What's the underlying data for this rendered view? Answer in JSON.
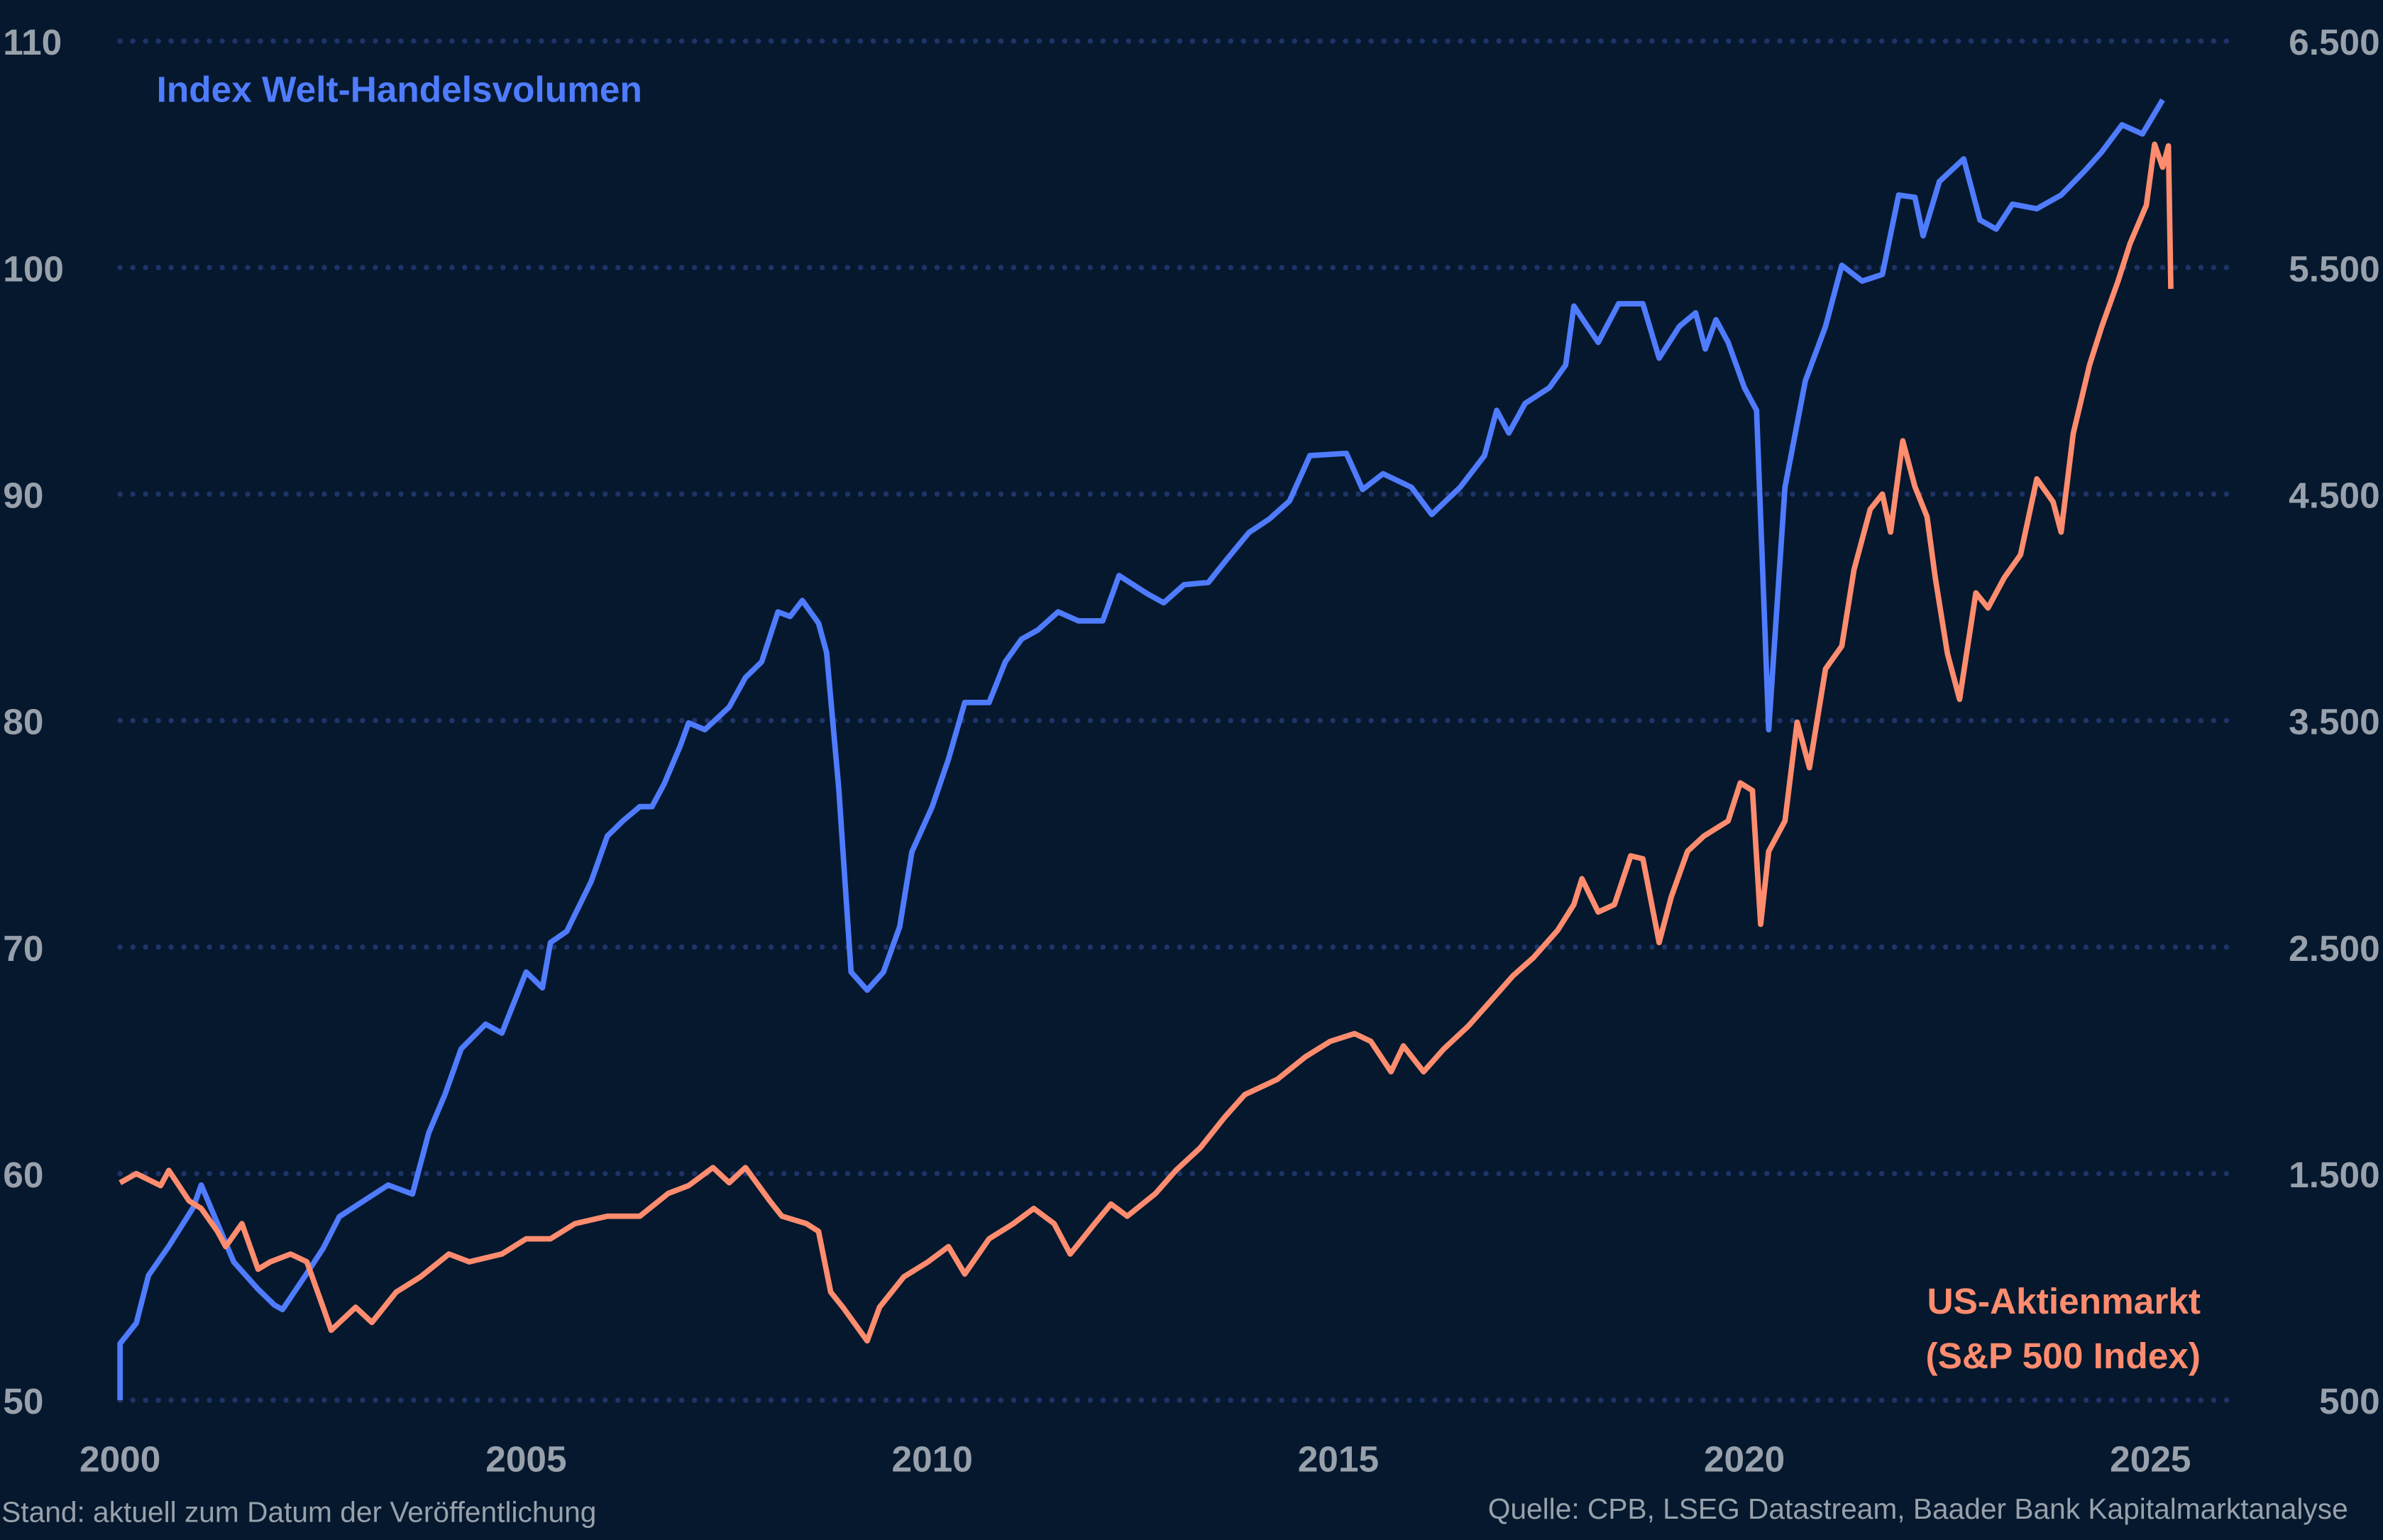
{
  "chart_data": {
    "type": "line",
    "title": "",
    "xlabel": "",
    "x_ticks": [
      "2000",
      "2005",
      "2010",
      "2015",
      "2020",
      "2025"
    ],
    "xlim": [
      2000,
      2025.6
    ],
    "y_left": {
      "lim": [
        50,
        110
      ],
      "ticks": [
        "50",
        "60",
        "70",
        "80",
        "90",
        "100",
        "110"
      ]
    },
    "y_right": {
      "lim": [
        500,
        6500
      ],
      "ticks": [
        "500",
        "1.500",
        "2.500",
        "3.500",
        "4.500",
        "5.500",
        "6.500"
      ]
    },
    "grid": true,
    "series": [
      {
        "name": "Index Welt-Handelsvolumen",
        "axis": "left",
        "color": "#4f7cff",
        "points": [
          [
            2000.0,
            52.5
          ],
          [
            2000.2,
            53.4
          ],
          [
            2000.35,
            55.5
          ],
          [
            2000.6,
            56.8
          ],
          [
            2000.9,
            58.5
          ],
          [
            2001.0,
            59.5
          ],
          [
            2001.2,
            57.8
          ],
          [
            2001.4,
            56.1
          ],
          [
            2001.7,
            54.9
          ],
          [
            2001.9,
            54.2
          ],
          [
            2002.0,
            54
          ],
          [
            2002.3,
            55.6
          ],
          [
            2002.5,
            56.7
          ],
          [
            2002.7,
            58.1
          ],
          [
            2003.0,
            58.8
          ],
          [
            2003.3,
            59.5
          ],
          [
            2003.6,
            59.1
          ],
          [
            2003.8,
            61.8
          ],
          [
            2004.0,
            63.5
          ],
          [
            2004.2,
            65.5
          ],
          [
            2004.5,
            66.6
          ],
          [
            2004.7,
            66.2
          ],
          [
            2005.0,
            68.9
          ],
          [
            2005.2,
            68.2
          ],
          [
            2005.3,
            70.2
          ],
          [
            2005.5,
            70.7
          ],
          [
            2005.8,
            72.9
          ],
          [
            2006.0,
            74.9
          ],
          [
            2006.2,
            75.6
          ],
          [
            2006.4,
            76.2
          ],
          [
            2006.55,
            76.2
          ],
          [
            2006.7,
            77.2
          ],
          [
            2006.9,
            78.9
          ],
          [
            2007.0,
            79.9
          ],
          [
            2007.2,
            79.6
          ],
          [
            2007.5,
            80.6
          ],
          [
            2007.7,
            81.9
          ],
          [
            2007.9,
            82.6
          ],
          [
            2008.1,
            84.8
          ],
          [
            2008.25,
            84.6
          ],
          [
            2008.4,
            85.3
          ],
          [
            2008.6,
            84.3
          ],
          [
            2008.7,
            83
          ],
          [
            2008.85,
            77
          ],
          [
            2009.0,
            68.9
          ],
          [
            2009.2,
            68.1
          ],
          [
            2009.4,
            68.9
          ],
          [
            2009.6,
            70.9
          ],
          [
            2009.75,
            74.2
          ],
          [
            2010.0,
            76.2
          ],
          [
            2010.2,
            78.3
          ],
          [
            2010.4,
            80.8
          ],
          [
            2010.7,
            80.8
          ],
          [
            2010.9,
            82.6
          ],
          [
            2011.1,
            83.6
          ],
          [
            2011.3,
            84
          ],
          [
            2011.55,
            84.8
          ],
          [
            2011.8,
            84.4
          ],
          [
            2012.1,
            84.4
          ],
          [
            2012.3,
            86.4
          ],
          [
            2012.65,
            85.6
          ],
          [
            2012.85,
            85.2
          ],
          [
            2013.1,
            86
          ],
          [
            2013.4,
            86.1
          ],
          [
            2013.6,
            87
          ],
          [
            2013.9,
            88.3
          ],
          [
            2014.15,
            88.9
          ],
          [
            2014.4,
            89.7
          ],
          [
            2014.65,
            91.7
          ],
          [
            2015.1,
            91.8
          ],
          [
            2015.3,
            90.2
          ],
          [
            2015.55,
            90.9
          ],
          [
            2015.9,
            90.3
          ],
          [
            2016.15,
            89.1
          ],
          [
            2016.5,
            90.3
          ],
          [
            2016.8,
            91.7
          ],
          [
            2016.95,
            93.7
          ],
          [
            2017.1,
            92.7
          ],
          [
            2017.3,
            94
          ],
          [
            2017.6,
            94.7
          ],
          [
            2017.8,
            95.7
          ],
          [
            2017.9,
            98.3
          ],
          [
            2018.2,
            96.7
          ],
          [
            2018.45,
            98.4
          ],
          [
            2018.75,
            98.4
          ],
          [
            2018.95,
            96
          ],
          [
            2019.2,
            97.4
          ],
          [
            2019.4,
            98
          ],
          [
            2019.52,
            96.4
          ],
          [
            2019.65,
            97.7
          ],
          [
            2019.8,
            96.7
          ],
          [
            2020.0,
            94.7
          ],
          [
            2020.15,
            93.7
          ],
          [
            2020.3,
            79.6
          ],
          [
            2020.5,
            90.3
          ],
          [
            2020.75,
            95
          ],
          [
            2021.0,
            97.4
          ],
          [
            2021.2,
            100.1
          ],
          [
            2021.45,
            99.4
          ],
          [
            2021.7,
            99.7
          ],
          [
            2021.9,
            103.2
          ],
          [
            2022.1,
            103.1
          ],
          [
            2022.2,
            101.4
          ],
          [
            2022.4,
            103.8
          ],
          [
            2022.7,
            104.8
          ],
          [
            2022.9,
            102.1
          ],
          [
            2023.1,
            101.7
          ],
          [
            2023.3,
            102.8
          ],
          [
            2023.6,
            102.6
          ],
          [
            2023.9,
            103.2
          ],
          [
            2024.2,
            104.3
          ],
          [
            2024.4,
            105.1
          ],
          [
            2024.65,
            106.3
          ],
          [
            2024.9,
            105.9
          ],
          [
            2025.15,
            107.4
          ]
        ]
      },
      {
        "name": "US-Aktienmarkt (S&P 500 Index)",
        "axis": "right",
        "color": "#ff8c6e",
        "points": [
          [
            2000.0,
            1460
          ],
          [
            2000.2,
            1500
          ],
          [
            2000.5,
            1447
          ],
          [
            2000.6,
            1514
          ],
          [
            2000.85,
            1380
          ],
          [
            2001.0,
            1346
          ],
          [
            2001.2,
            1245
          ],
          [
            2001.3,
            1178
          ],
          [
            2001.5,
            1279
          ],
          [
            2001.7,
            1078
          ],
          [
            2001.85,
            1111
          ],
          [
            2002.1,
            1145
          ],
          [
            2002.3,
            1111
          ],
          [
            2002.5,
            910
          ],
          [
            2002.6,
            809
          ],
          [
            2002.9,
            910
          ],
          [
            2003.1,
            843
          ],
          [
            2003.4,
            977
          ],
          [
            2003.7,
            1044
          ],
          [
            2004.05,
            1145
          ],
          [
            2004.3,
            1111
          ],
          [
            2004.7,
            1145
          ],
          [
            2005.0,
            1212
          ],
          [
            2005.3,
            1212
          ],
          [
            2005.6,
            1279
          ],
          [
            2006.0,
            1312
          ],
          [
            2006.4,
            1312
          ],
          [
            2006.75,
            1413
          ],
          [
            2007.0,
            1447
          ],
          [
            2007.3,
            1527
          ],
          [
            2007.5,
            1460
          ],
          [
            2007.7,
            1527
          ],
          [
            2008.0,
            1380
          ],
          [
            2008.15,
            1312
          ],
          [
            2008.45,
            1279
          ],
          [
            2008.6,
            1245
          ],
          [
            2008.75,
            977
          ],
          [
            2008.9,
            910
          ],
          [
            2009.2,
            762
          ],
          [
            2009.35,
            910
          ],
          [
            2009.65,
            1044
          ],
          [
            2009.95,
            1111
          ],
          [
            2010.2,
            1178
          ],
          [
            2010.4,
            1057
          ],
          [
            2010.7,
            1212
          ],
          [
            2011.0,
            1279
          ],
          [
            2011.25,
            1346
          ],
          [
            2011.5,
            1279
          ],
          [
            2011.7,
            1145
          ],
          [
            2012.0,
            1279
          ],
          [
            2012.2,
            1366
          ],
          [
            2012.4,
            1312
          ],
          [
            2012.75,
            1413
          ],
          [
            2013.0,
            1514
          ],
          [
            2013.3,
            1614
          ],
          [
            2013.6,
            1749
          ],
          [
            2013.85,
            1849
          ],
          [
            2014.25,
            1916
          ],
          [
            2014.6,
            2017
          ],
          [
            2014.9,
            2084
          ],
          [
            2015.2,
            2118
          ],
          [
            2015.4,
            2084
          ],
          [
            2015.65,
            1950
          ],
          [
            2015.8,
            2064
          ],
          [
            2016.05,
            1950
          ],
          [
            2016.3,
            2051
          ],
          [
            2016.6,
            2151
          ],
          [
            2016.85,
            2252
          ],
          [
            2017.15,
            2373
          ],
          [
            2017.4,
            2453
          ],
          [
            2017.7,
            2574
          ],
          [
            2017.9,
            2688
          ],
          [
            2018.0,
            2802
          ],
          [
            2018.2,
            2655
          ],
          [
            2018.4,
            2688
          ],
          [
            2018.6,
            2903
          ],
          [
            2018.75,
            2890
          ],
          [
            2018.95,
            2520
          ],
          [
            2019.1,
            2722
          ],
          [
            2019.3,
            2923
          ],
          [
            2019.5,
            2990
          ],
          [
            2019.8,
            3057
          ],
          [
            2019.95,
            3225
          ],
          [
            2020.1,
            3191
          ],
          [
            2020.2,
            2601
          ],
          [
            2020.3,
            2923
          ],
          [
            2020.5,
            3057
          ],
          [
            2020.65,
            3493
          ],
          [
            2020.8,
            3292
          ],
          [
            2021.0,
            3728
          ],
          [
            2021.2,
            3829
          ],
          [
            2021.35,
            4165
          ],
          [
            2021.55,
            4433
          ],
          [
            2021.7,
            4500
          ],
          [
            2021.8,
            4332
          ],
          [
            2021.95,
            4735
          ],
          [
            2022.1,
            4533
          ],
          [
            2022.25,
            4399
          ],
          [
            2022.35,
            4131
          ],
          [
            2022.5,
            3796
          ],
          [
            2022.65,
            3594
          ],
          [
            2022.85,
            4064
          ],
          [
            2023.0,
            3997
          ],
          [
            2023.2,
            4131
          ],
          [
            2023.4,
            4232
          ],
          [
            2023.6,
            4567
          ],
          [
            2023.8,
            4466
          ],
          [
            2023.9,
            4332
          ],
          [
            2024.05,
            4768
          ],
          [
            2024.25,
            5070
          ],
          [
            2024.4,
            5238
          ],
          [
            2024.6,
            5439
          ],
          [
            2024.75,
            5607
          ],
          [
            2024.95,
            5775
          ],
          [
            2025.05,
            6044
          ],
          [
            2025.15,
            5943
          ],
          [
            2025.22,
            6037
          ],
          [
            2025.25,
            5406
          ]
        ]
      }
    ],
    "annotations": {
      "left_series_label": "Index Welt-Handelsvolumen",
      "right_series_label_line1": "US-Aktienmarkt",
      "right_series_label_line2": "(S&P 500 Index)"
    }
  },
  "footer": {
    "left": "Stand: aktuell zum Datum der Veröffentlichung",
    "right": "Quelle: CPB, LSEG Datastream, Baader Bank Kapitalmarktanalyse"
  },
  "colors": {
    "background": "#05182e",
    "grid": "#1e3468",
    "tick_text": "#98a1ab"
  }
}
